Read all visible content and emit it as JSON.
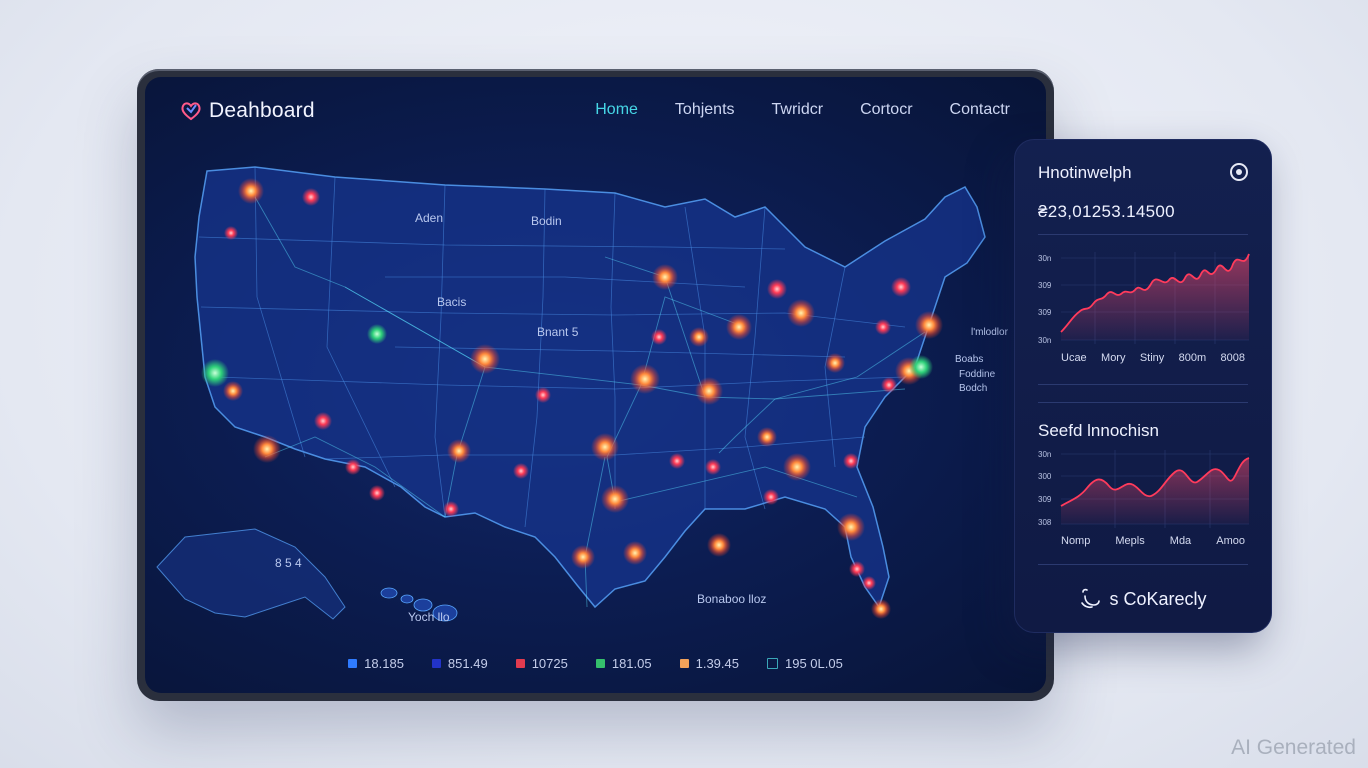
{
  "header": {
    "brand": "Deahboard",
    "brand_icon": "heart-logo-icon",
    "nav": [
      {
        "label": "Home",
        "active": true
      },
      {
        "label": "Tohjents",
        "active": false
      },
      {
        "label": "Twridcr",
        "active": false
      },
      {
        "label": "Cortocr",
        "active": false
      },
      {
        "label": "Contactr",
        "active": false
      }
    ]
  },
  "map": {
    "labels": [
      "Aden",
      "Bodin",
      "Bacis",
      "Bnant 5",
      "Bonaboo lloz",
      "Yoch llo",
      "8 5 4",
      "Boabs",
      "Foddine",
      "Bodch",
      "l'mlodlor"
    ]
  },
  "legend": [
    {
      "color": "#2f7bff",
      "value": "18.185"
    },
    {
      "color": "#2233c8",
      "value": "851.49"
    },
    {
      "color": "#e23b4f",
      "value": "10725"
    },
    {
      "color": "#35c06c",
      "value": "181.05"
    },
    {
      "color": "#f2a25a",
      "value": "1.39.45"
    },
    {
      "color": "#25465a",
      "value": "195 0L.05"
    }
  ],
  "panel": {
    "title": "Hnotinwelph",
    "settings_icon": "settings-icon",
    "value": "₴23,01253.14500",
    "chart1": {
      "ytick_labels": [
        "30n",
        "309",
        "309",
        "30n"
      ],
      "xtick_labels": [
        "Ucae",
        "Mory",
        "Stiny",
        "800m",
        "8008"
      ]
    },
    "subtitle": "Seefd lnnochisn",
    "chart2": {
      "ytick_labels": [
        "30n",
        "300",
        "309",
        "308"
      ],
      "xtick_labels": [
        "Nomp",
        "Mepls",
        "Mda",
        "Amoo"
      ]
    },
    "footer_icon": "chat-bubble-icon",
    "footer_label": "s CoKarecly"
  },
  "watermark": "AI Generated"
}
